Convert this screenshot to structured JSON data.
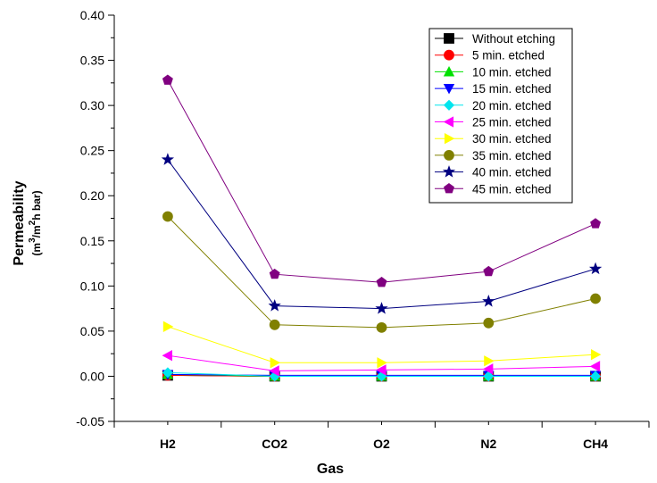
{
  "chart_data": {
    "type": "line",
    "title": "",
    "xlabel": "Gas",
    "ylabel": "Permeability",
    "ylabel_unit_parts": [
      "(m",
      "3",
      "/m",
      "2",
      "h bar)"
    ],
    "categories": [
      "H2",
      "CO2",
      "O2",
      "N2",
      "CH4"
    ],
    "ylim": [
      -0.05,
      0.4
    ],
    "yticks": [
      "-0.05",
      "0.00",
      "0.05",
      "0.10",
      "0.15",
      "0.20",
      "0.25",
      "0.30",
      "0.35",
      "0.40"
    ],
    "legend_position": "top-right",
    "grid": false,
    "series": [
      {
        "name": "Without etching",
        "color": "#000000",
        "marker": "square",
        "values": [
          0.001,
          0.0,
          0.0,
          0.0,
          0.0
        ]
      },
      {
        "name": "5 min. etched",
        "color": "#ff0000",
        "marker": "circle",
        "values": [
          0.001,
          0.0,
          0.0,
          0.0,
          0.0
        ]
      },
      {
        "name": "10 min. etched",
        "color": "#00e000",
        "marker": "triangle-up",
        "values": [
          0.002,
          0.0,
          0.0,
          0.0,
          0.0
        ]
      },
      {
        "name": "15 min. etched",
        "color": "#0000ff",
        "marker": "triangle-down",
        "values": [
          0.002,
          0.001,
          0.001,
          0.001,
          0.001
        ]
      },
      {
        "name": "20 min. etched",
        "color": "#00e5ee",
        "marker": "diamond",
        "values": [
          0.004,
          0.0,
          0.0,
          0.0,
          0.0
        ]
      },
      {
        "name": "25 min. etched",
        "color": "#ff00ff",
        "marker": "triangle-left",
        "values": [
          0.023,
          0.006,
          0.007,
          0.008,
          0.011
        ]
      },
      {
        "name": "30 min. etched",
        "color": "#ffff00",
        "marker": "triangle-right",
        "values": [
          0.055,
          0.015,
          0.015,
          0.017,
          0.024
        ]
      },
      {
        "name": "35 min. etched",
        "color": "#808000",
        "marker": "circle",
        "values": [
          0.177,
          0.057,
          0.054,
          0.059,
          0.086
        ]
      },
      {
        "name": "40 min. etched",
        "color": "#000080",
        "marker": "star",
        "values": [
          0.24,
          0.078,
          0.075,
          0.083,
          0.119
        ]
      },
      {
        "name": "45 min. etched",
        "color": "#800080",
        "marker": "pentagon",
        "values": [
          0.328,
          0.113,
          0.104,
          0.116,
          0.169
        ]
      }
    ]
  }
}
